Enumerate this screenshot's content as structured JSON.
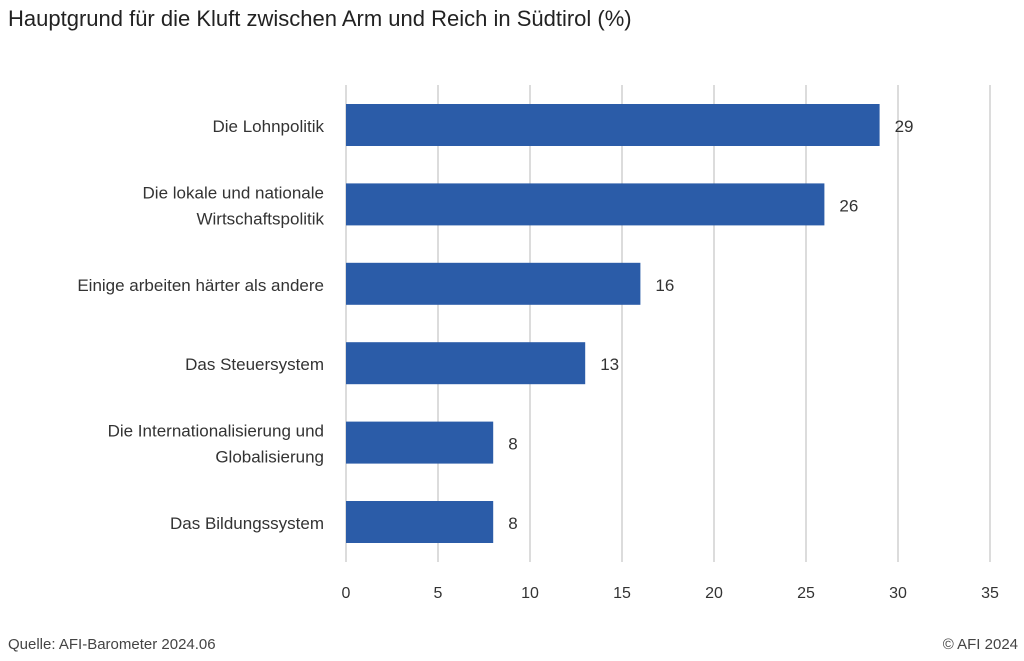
{
  "chart_data": {
    "type": "bar",
    "orientation": "horizontal",
    "title": "Hauptgrund für die Kluft zwischen Arm und Reich in Südtirol (%)",
    "categories": [
      [
        "Die Lohnpolitik"
      ],
      [
        "Die lokale und nationale",
        "Wirtschaftspolitik"
      ],
      [
        "Einige arbeiten härter als andere"
      ],
      [
        "Das Steuersystem"
      ],
      [
        "Die Internationalisierung und",
        "Globalisierung"
      ],
      [
        "Das Bildungssystem"
      ]
    ],
    "values": [
      29,
      26,
      16,
      13,
      8,
      8
    ],
    "xlim": [
      0,
      35
    ],
    "xticks": [
      0,
      5,
      10,
      15,
      20,
      25,
      30,
      35
    ],
    "grid": true,
    "bar_color": "#2b5ca8",
    "grid_color": "#d0d0d0"
  },
  "footer": {
    "source": "Quelle: AFI-Barometer 2024.06",
    "copyright": "© AFI 2024"
  }
}
